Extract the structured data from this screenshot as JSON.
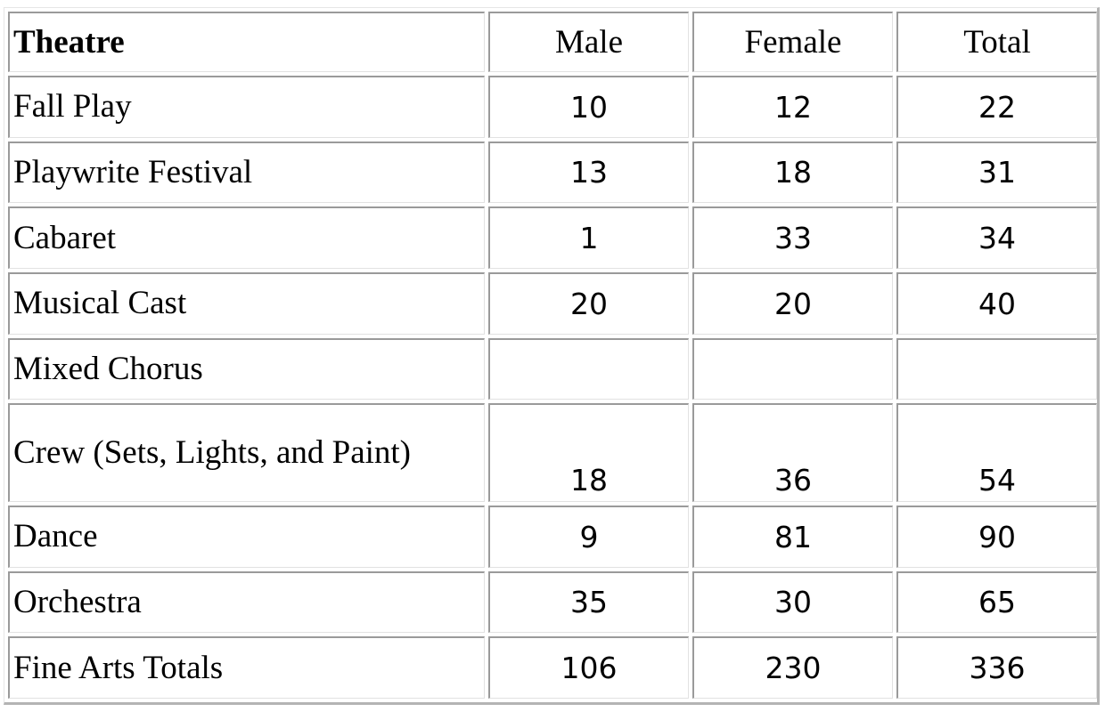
{
  "table": {
    "headers": [
      "Theatre",
      "Male",
      "Female",
      "Total"
    ],
    "rows": [
      {
        "name": "Fall Play",
        "male": "10",
        "female": "12",
        "total": "22"
      },
      {
        "name": "Playwrite Festival",
        "male": "13",
        "female": "18",
        "total": "31"
      },
      {
        "name": "Cabaret",
        "male": "1",
        "female": "33",
        "total": "34"
      },
      {
        "name": "Musical Cast",
        "male": "20",
        "female": "20",
        "total": "40"
      },
      {
        "name": "Mixed Chorus",
        "male": "",
        "female": "",
        "total": ""
      },
      {
        "name": "Crew (Sets, Lights, and Paint)",
        "male": "18",
        "female": "36",
        "total": "54"
      },
      {
        "name": "Dance",
        "male": "9",
        "female": "81",
        "total": "90"
      },
      {
        "name": "Orchestra",
        "male": "35",
        "female": "30",
        "total": "65"
      },
      {
        "name": "Fine Arts Totals",
        "male": "106",
        "female": "230",
        "total": "336"
      }
    ]
  }
}
